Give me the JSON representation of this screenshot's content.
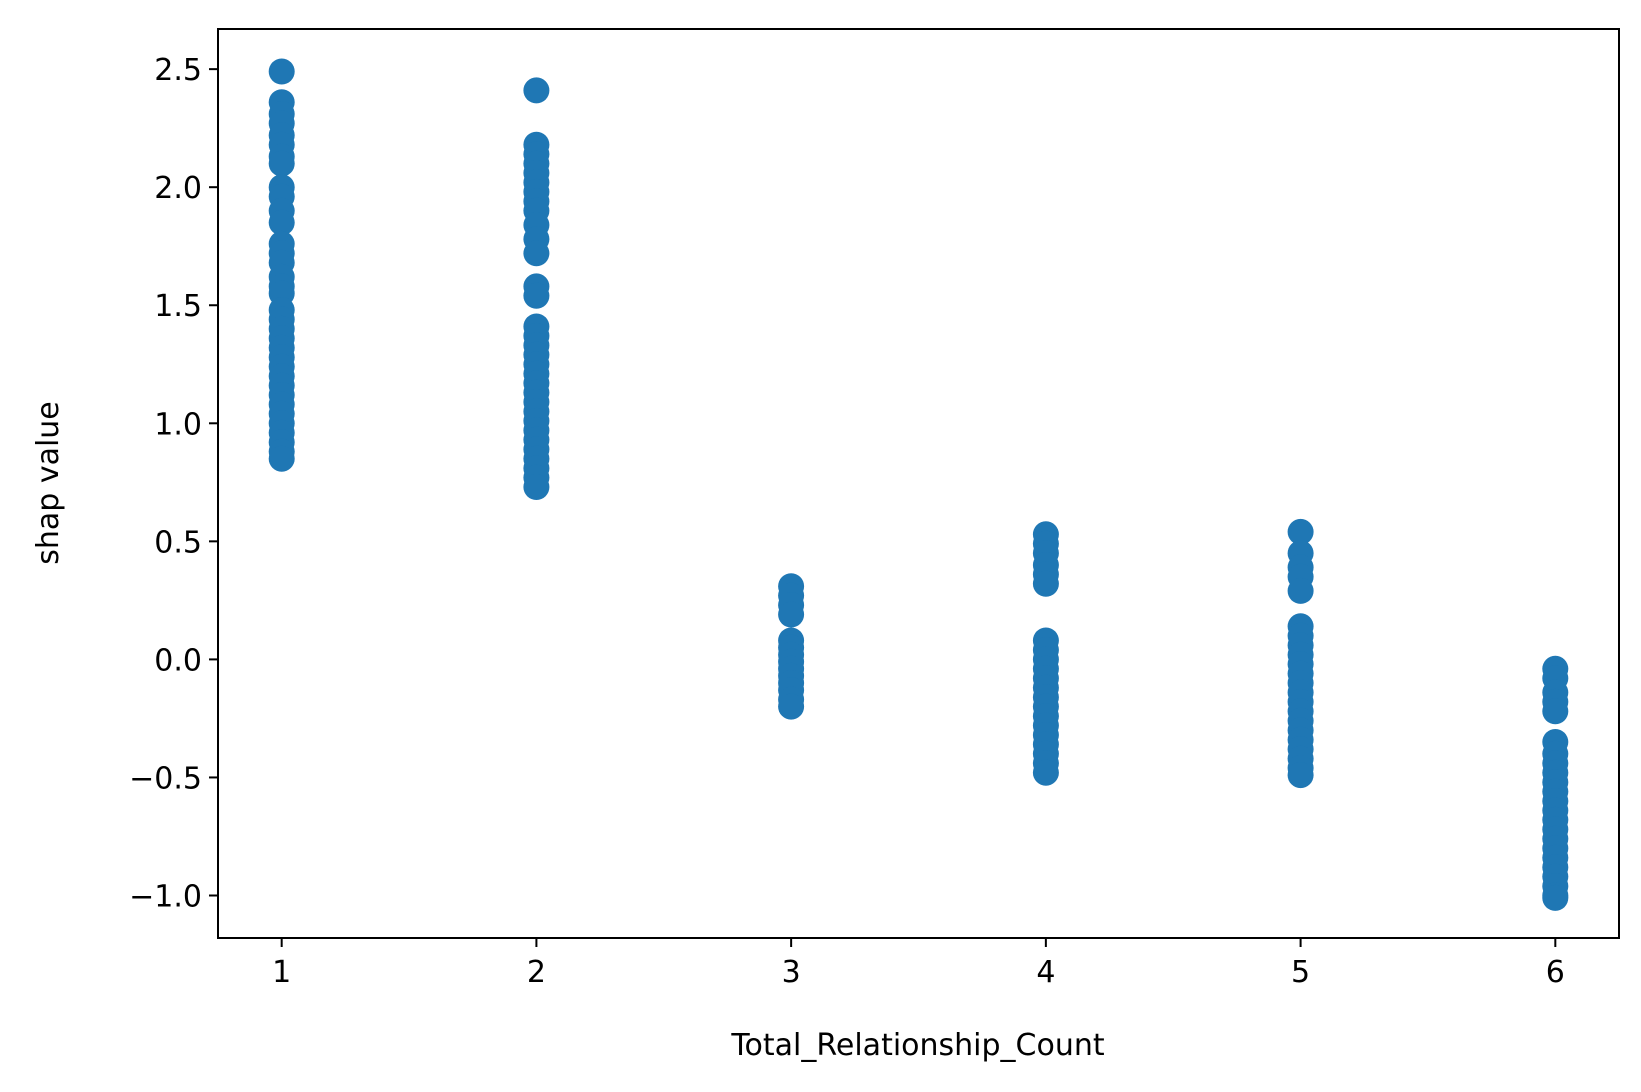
{
  "chart_data": {
    "type": "scatter",
    "title": "",
    "xlabel": "Total_Relationship_Count",
    "ylabel": "shap value",
    "xlim": [
      0.75,
      6.25
    ],
    "ylim": [
      -1.18,
      2.67
    ],
    "grid": false,
    "legend": "none",
    "marker_color": "#1f77b4",
    "x_ticks": [
      {
        "value": 1,
        "label": "1"
      },
      {
        "value": 2,
        "label": "2"
      },
      {
        "value": 3,
        "label": "3"
      },
      {
        "value": 4,
        "label": "4"
      },
      {
        "value": 5,
        "label": "5"
      },
      {
        "value": 6,
        "label": "6"
      }
    ],
    "y_ticks": [
      {
        "value": 2.5,
        "label": "2.5"
      },
      {
        "value": 2.0,
        "label": "2.0"
      },
      {
        "value": 1.5,
        "label": "1.5"
      },
      {
        "value": 1.0,
        "label": "1.0"
      },
      {
        "value": 0.5,
        "label": "0.5"
      },
      {
        "value": 0.0,
        "label": "0.0"
      },
      {
        "value": -0.5,
        "label": "−0.5"
      },
      {
        "value": -1.0,
        "label": "−1.0"
      }
    ],
    "series": [
      {
        "points": [
          {
            "x": 1,
            "y": 2.49
          },
          {
            "x": 1,
            "y": 2.36
          },
          {
            "x": 1,
            "y": 2.31
          },
          {
            "x": 1,
            "y": 2.27
          },
          {
            "x": 1,
            "y": 2.22
          },
          {
            "x": 1,
            "y": 2.18
          },
          {
            "x": 1,
            "y": 2.13
          },
          {
            "x": 1,
            "y": 2.1
          },
          {
            "x": 1,
            "y": 2.0
          },
          {
            "x": 1,
            "y": 1.96
          },
          {
            "x": 1,
            "y": 1.9
          },
          {
            "x": 1,
            "y": 1.85
          },
          {
            "x": 1,
            "y": 1.76
          },
          {
            "x": 1,
            "y": 1.72
          },
          {
            "x": 1,
            "y": 1.68
          },
          {
            "x": 1,
            "y": 1.62
          },
          {
            "x": 1,
            "y": 1.58
          },
          {
            "x": 1,
            "y": 1.55
          },
          {
            "x": 1,
            "y": 1.48
          },
          {
            "x": 1,
            "y": 1.44
          },
          {
            "x": 1,
            "y": 1.4
          },
          {
            "x": 1,
            "y": 1.36
          },
          {
            "x": 1,
            "y": 1.32
          },
          {
            "x": 1,
            "y": 1.28
          },
          {
            "x": 1,
            "y": 1.24
          },
          {
            "x": 1,
            "y": 1.2
          },
          {
            "x": 1,
            "y": 1.16
          },
          {
            "x": 1,
            "y": 1.12
          },
          {
            "x": 1,
            "y": 1.08
          },
          {
            "x": 1,
            "y": 1.04
          },
          {
            "x": 1,
            "y": 1.0
          },
          {
            "x": 1,
            "y": 0.96
          },
          {
            "x": 1,
            "y": 0.92
          },
          {
            "x": 1,
            "y": 0.88
          },
          {
            "x": 1,
            "y": 0.85
          },
          {
            "x": 2,
            "y": 2.41
          },
          {
            "x": 2,
            "y": 2.18
          },
          {
            "x": 2,
            "y": 2.14
          },
          {
            "x": 2,
            "y": 2.1
          },
          {
            "x": 2,
            "y": 2.06
          },
          {
            "x": 2,
            "y": 2.02
          },
          {
            "x": 2,
            "y": 1.98
          },
          {
            "x": 2,
            "y": 1.94
          },
          {
            "x": 2,
            "y": 1.9
          },
          {
            "x": 2,
            "y": 1.84
          },
          {
            "x": 2,
            "y": 1.78
          },
          {
            "x": 2,
            "y": 1.72
          },
          {
            "x": 2,
            "y": 1.58
          },
          {
            "x": 2,
            "y": 1.54
          },
          {
            "x": 2,
            "y": 1.41
          },
          {
            "x": 2,
            "y": 1.37
          },
          {
            "x": 2,
            "y": 1.33
          },
          {
            "x": 2,
            "y": 1.29
          },
          {
            "x": 2,
            "y": 1.25
          },
          {
            "x": 2,
            "y": 1.21
          },
          {
            "x": 2,
            "y": 1.17
          },
          {
            "x": 2,
            "y": 1.13
          },
          {
            "x": 2,
            "y": 1.09
          },
          {
            "x": 2,
            "y": 1.05
          },
          {
            "x": 2,
            "y": 1.01
          },
          {
            "x": 2,
            "y": 0.97
          },
          {
            "x": 2,
            "y": 0.93
          },
          {
            "x": 2,
            "y": 0.89
          },
          {
            "x": 2,
            "y": 0.85
          },
          {
            "x": 2,
            "y": 0.81
          },
          {
            "x": 2,
            "y": 0.77
          },
          {
            "x": 2,
            "y": 0.73
          },
          {
            "x": 3,
            "y": 0.31
          },
          {
            "x": 3,
            "y": 0.27
          },
          {
            "x": 3,
            "y": 0.23
          },
          {
            "x": 3,
            "y": 0.19
          },
          {
            "x": 3,
            "y": 0.08
          },
          {
            "x": 3,
            "y": 0.05
          },
          {
            "x": 3,
            "y": 0.02
          },
          {
            "x": 3,
            "y": -0.01
          },
          {
            "x": 3,
            "y": -0.04
          },
          {
            "x": 3,
            "y": -0.07
          },
          {
            "x": 3,
            "y": -0.1
          },
          {
            "x": 3,
            "y": -0.13
          },
          {
            "x": 3,
            "y": -0.17
          },
          {
            "x": 3,
            "y": -0.2
          },
          {
            "x": 4,
            "y": 0.53
          },
          {
            "x": 4,
            "y": 0.49
          },
          {
            "x": 4,
            "y": 0.45
          },
          {
            "x": 4,
            "y": 0.4
          },
          {
            "x": 4,
            "y": 0.36
          },
          {
            "x": 4,
            "y": 0.32
          },
          {
            "x": 4,
            "y": 0.08
          },
          {
            "x": 4,
            "y": 0.04
          },
          {
            "x": 4,
            "y": 0.0
          },
          {
            "x": 4,
            "y": -0.04
          },
          {
            "x": 4,
            "y": -0.08
          },
          {
            "x": 4,
            "y": -0.12
          },
          {
            "x": 4,
            "y": -0.16
          },
          {
            "x": 4,
            "y": -0.2
          },
          {
            "x": 4,
            "y": -0.24
          },
          {
            "x": 4,
            "y": -0.28
          },
          {
            "x": 4,
            "y": -0.32
          },
          {
            "x": 4,
            "y": -0.36
          },
          {
            "x": 4,
            "y": -0.4
          },
          {
            "x": 4,
            "y": -0.44
          },
          {
            "x": 4,
            "y": -0.48
          },
          {
            "x": 5,
            "y": 0.54
          },
          {
            "x": 5,
            "y": 0.45
          },
          {
            "x": 5,
            "y": 0.39
          },
          {
            "x": 5,
            "y": 0.35
          },
          {
            "x": 5,
            "y": 0.29
          },
          {
            "x": 5,
            "y": 0.14
          },
          {
            "x": 5,
            "y": 0.1
          },
          {
            "x": 5,
            "y": 0.06
          },
          {
            "x": 5,
            "y": 0.02
          },
          {
            "x": 5,
            "y": -0.02
          },
          {
            "x": 5,
            "y": -0.06
          },
          {
            "x": 5,
            "y": -0.1
          },
          {
            "x": 5,
            "y": -0.14
          },
          {
            "x": 5,
            "y": -0.18
          },
          {
            "x": 5,
            "y": -0.22
          },
          {
            "x": 5,
            "y": -0.26
          },
          {
            "x": 5,
            "y": -0.3
          },
          {
            "x": 5,
            "y": -0.34
          },
          {
            "x": 5,
            "y": -0.38
          },
          {
            "x": 5,
            "y": -0.42
          },
          {
            "x": 5,
            "y": -0.46
          },
          {
            "x": 5,
            "y": -0.49
          },
          {
            "x": 6,
            "y": -0.04
          },
          {
            "x": 6,
            "y": -0.08
          },
          {
            "x": 6,
            "y": -0.14
          },
          {
            "x": 6,
            "y": -0.18
          },
          {
            "x": 6,
            "y": -0.22
          },
          {
            "x": 6,
            "y": -0.35
          },
          {
            "x": 6,
            "y": -0.4
          },
          {
            "x": 6,
            "y": -0.44
          },
          {
            "x": 6,
            "y": -0.48
          },
          {
            "x": 6,
            "y": -0.52
          },
          {
            "x": 6,
            "y": -0.56
          },
          {
            "x": 6,
            "y": -0.6
          },
          {
            "x": 6,
            "y": -0.64
          },
          {
            "x": 6,
            "y": -0.68
          },
          {
            "x": 6,
            "y": -0.72
          },
          {
            "x": 6,
            "y": -0.76
          },
          {
            "x": 6,
            "y": -0.8
          },
          {
            "x": 6,
            "y": -0.84
          },
          {
            "x": 6,
            "y": -0.88
          },
          {
            "x": 6,
            "y": -0.92
          },
          {
            "x": 6,
            "y": -0.96
          },
          {
            "x": 6,
            "y": -1.0
          },
          {
            "x": 6,
            "y": -1.01
          }
        ]
      }
    ]
  }
}
